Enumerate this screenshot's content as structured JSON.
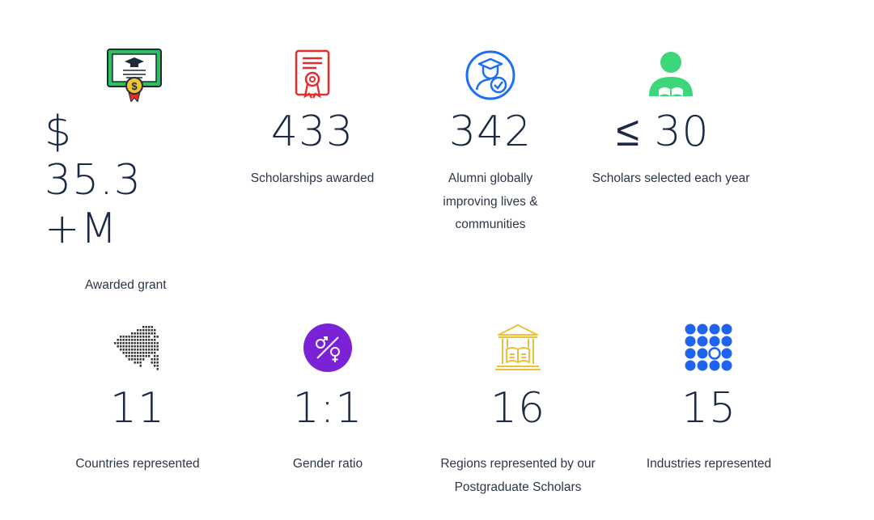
{
  "stats_top": [
    {
      "icon": "certificate-icon",
      "value": "$ 35.3 +M",
      "label": "Awarded grant"
    },
    {
      "icon": "award-document-icon",
      "value": "433",
      "label": "Scholarships awarded"
    },
    {
      "icon": "graduate-check-icon",
      "value": "342",
      "label": "Alumni globally improving lives & communities"
    },
    {
      "icon": "reading-student-icon",
      "value": "≤ 30",
      "label": "Scholars selected each year"
    }
  ],
  "stats_bottom": [
    {
      "icon": "dotted-map-icon",
      "value": "11",
      "label": "Countries represented"
    },
    {
      "icon": "gender-symbols-icon",
      "value": "1:1",
      "label": "Gender ratio"
    },
    {
      "icon": "library-building-icon",
      "value": "16",
      "label": "Regions represented by our Postgraduate Scholars"
    },
    {
      "icon": "dot-grid-icon",
      "value": "15",
      "label": "Industries represented"
    }
  ],
  "colors": {
    "text": "#1b2846",
    "certificate_green": "#2fbf5a",
    "award_red": "#e52d2d",
    "graduate_blue": "#1e6ff0",
    "student_green": "#3dd67a",
    "gender_purple": "#7b22d6",
    "library_gold": "#e9c13a",
    "grid_blue": "#1e64f0"
  }
}
